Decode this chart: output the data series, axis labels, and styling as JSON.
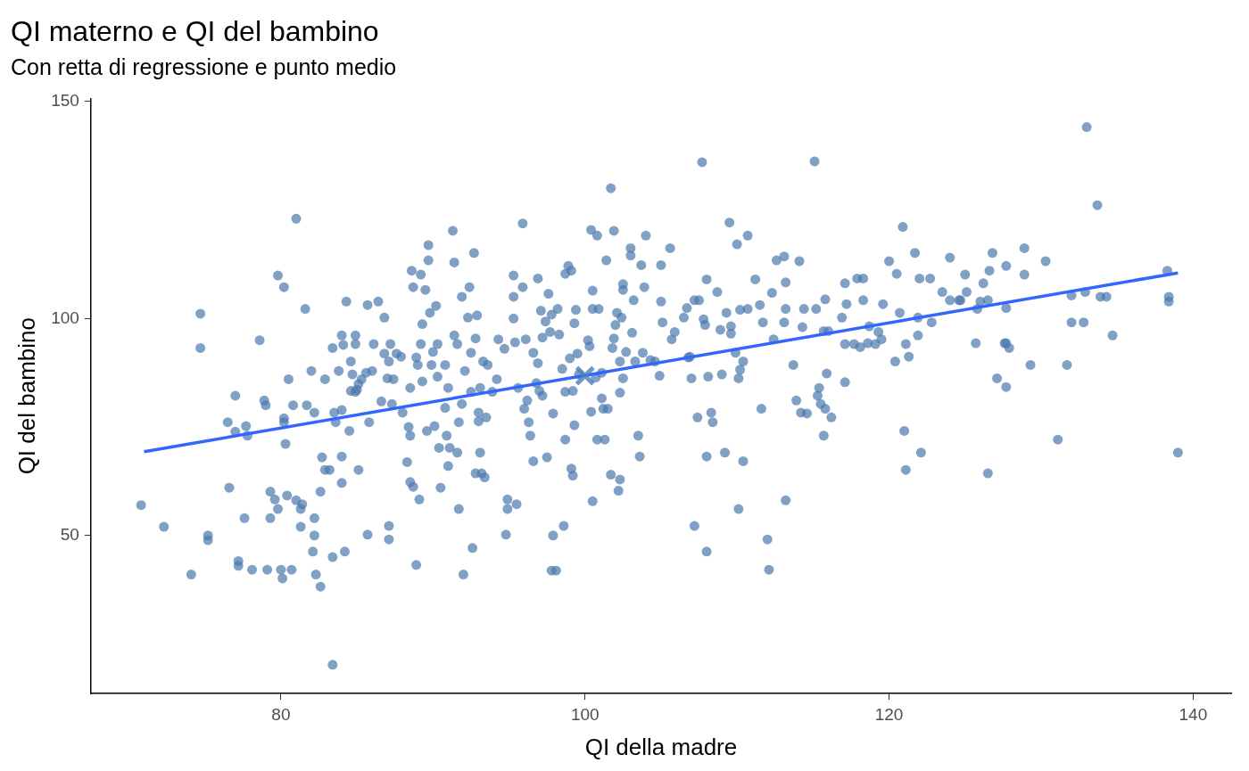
{
  "chart_data": {
    "type": "scatter",
    "title": "QI materno e QI del bambino",
    "subtitle": "Con retta di regressione e punto medio",
    "xlabel": "QI della madre",
    "ylabel": "QI del bambino",
    "xlim": [
      67.5,
      142.5
    ],
    "xticks": [
      80,
      100,
      120,
      140
    ],
    "ylim": [
      13.6,
      150.7
    ],
    "yticks": [
      50,
      100,
      150
    ],
    "grid": false,
    "legend": false,
    "series": [
      {
        "color": "#4a77ad",
        "marker": "circle",
        "x": [
          70.8,
          72.3,
          74.1,
          74.7,
          74.7,
          75.2,
          75.2,
          76.5,
          76.6,
          77.0,
          77.0,
          77.2,
          77.2,
          77.6,
          77.7,
          77.8,
          78.1,
          78.6,
          78.9,
          79.0,
          79.1,
          79.3,
          79.3,
          79.6,
          79.8,
          79.8,
          80.0,
          80.1,
          80.2,
          80.2,
          80.2,
          80.3,
          80.4,
          80.5,
          80.7,
          80.8,
          81.0,
          81.0,
          81.3,
          81.3,
          81.6,
          81.7,
          81.4,
          82.0,
          82.1,
          82.2,
          82.2,
          82.2,
          82.3,
          82.6,
          82.6,
          82.7,
          82.9,
          82.9,
          83.2,
          83.4,
          83.4,
          83.4,
          83.5,
          83.6,
          83.8,
          84.0,
          84.0,
          84.0,
          84.0,
          84.1,
          84.2,
          84.3,
          84.5,
          84.6,
          84.6,
          84.7,
          84.9,
          84.9,
          84.9,
          85.0,
          85.1,
          85.1,
          85.3,
          85.6,
          85.7,
          85.7,
          85.8,
          86.0,
          86.1,
          86.4,
          86.6,
          86.8,
          86.8,
          87.0,
          87.1,
          87.1,
          87.1,
          87.2,
          87.3,
          87.4,
          87.6,
          87.9,
          88.0,
          88.3,
          88.4,
          88.5,
          88.5,
          88.5,
          88.6,
          88.7,
          88.7,
          88.9,
          88.9,
          89.0,
          89.1,
          89.2,
          89.2,
          89.3,
          89.3,
          89.5,
          89.6,
          89.7,
          89.7,
          89.8,
          89.9,
          90.0,
          90.1,
          90.2,
          90.3,
          90.3,
          90.4,
          90.5,
          90.8,
          90.8,
          90.9,
          91.0,
          91.0,
          91.1,
          91.3,
          91.4,
          91.4,
          91.6,
          91.6,
          91.7,
          91.7,
          91.9,
          91.9,
          92.0,
          92.1,
          92.3,
          92.4,
          92.5,
          92.5,
          92.6,
          92.7,
          92.8,
          92.8,
          92.9,
          93.0,
          93.0,
          93.1,
          93.1,
          93.2,
          93.3,
          93.4,
          93.5,
          93.6,
          93.9,
          94.2,
          94.3,
          94.7,
          94.8,
          94.9,
          94.9,
          95.3,
          95.3,
          95.3,
          95.4,
          95.5,
          95.6,
          95.9,
          95.9,
          96.0,
          96.1,
          96.2,
          96.3,
          96.4,
          96.6,
          96.6,
          96.8,
          96.9,
          96.9,
          97.0,
          97.1,
          97.2,
          97.2,
          97.4,
          97.5,
          97.6,
          97.7,
          97.8,
          97.8,
          97.9,
          97.9,
          98.1,
          98.2,
          98.3,
          98.5,
          98.6,
          98.7,
          98.7,
          98.7,
          98.9,
          99.0,
          99.1,
          99.1,
          99.2,
          99.2,
          99.3,
          99.3,
          99.4,
          99.5,
          99.6,
          100.2,
          100.4,
          100.3,
          100.4,
          100.5,
          100.5,
          100.5,
          100.7,
          100.8,
          100.8,
          100.9,
          101.1,
          101.1,
          101.2,
          101.3,
          101.4,
          101.5,
          101.7,
          101.7,
          101.9,
          101.8,
          101.9,
          102.0,
          102.1,
          102.2,
          102.3,
          102.3,
          102.3,
          102.4,
          102.5,
          102.5,
          102.5,
          102.7,
          103.0,
          103.0,
          103.1,
          103.2,
          103.3,
          103.5,
          103.6,
          103.7,
          103.8,
          103.9,
          104.0,
          104.3,
          104.6,
          104.9,
          105.0,
          105.0,
          105.1,
          105.6,
          105.7,
          105.9,
          106.5,
          106.7,
          106.8,
          106.9,
          107.0,
          107.2,
          107.2,
          107.4,
          107.5,
          107.7,
          107.8,
          107.9,
          108.0,
          108.0,
          108.0,
          108.1,
          108.3,
          108.4,
          108.7,
          108.9,
          109.0,
          109.2,
          109.3,
          109.5,
          109.6,
          109.6,
          109.9,
          110.0,
          110.1,
          110.1,
          110.2,
          110.2,
          110.4,
          110.4,
          110.7,
          110.7,
          111.2,
          111.5,
          111.6,
          111.7,
          112.0,
          112.1,
          112.3,
          112.4,
          112.6,
          113.1,
          113.1,
          113.2,
          113.2,
          113.2,
          113.7,
          113.9,
          114.1,
          114.2,
          114.3,
          114.4,
          114.6,
          115.1,
          115.2,
          115.3,
          115.4,
          115.5,
          115.7,
          115.7,
          115.8,
          115.8,
          115.9,
          116.0,
          116.2,
          116.9,
          117.1,
          117.1,
          117.1,
          117.2,
          117.7,
          117.9,
          118.1,
          118.3,
          118.3,
          118.6,
          118.7,
          119.1,
          119.3,
          119.5,
          119.6,
          120.0,
          120.4,
          120.5,
          120.7,
          120.9,
          121.0,
          121.1,
          121.1,
          121.3,
          121.7,
          121.9,
          121.9,
          122.0,
          122.1,
          122.7,
          122.8,
          123.5,
          124.0,
          124.0,
          124.6,
          124.7,
          125.0,
          125.1,
          125.7,
          125.8,
          126.0,
          126.2,
          126.5,
          126.5,
          126.6,
          126.8,
          127.1,
          127.6,
          127.7,
          127.7,
          127.7,
          127.7,
          127.9,
          128.9,
          128.9,
          129.3,
          130.3,
          131.1,
          131.7,
          132.0,
          132.0,
          132.8,
          132.9,
          133.0,
          133.7,
          133.9,
          134.3,
          134.7,
          138.3,
          138.4,
          138.4,
          139.0
        ],
        "values": [
          57.0,
          52.0,
          41.0,
          101.1,
          93.2,
          50.0,
          48.9,
          76.1,
          61.0,
          82.2,
          73.9,
          44.1,
          43.0,
          54.0,
          75.2,
          73.0,
          42.1,
          95.0,
          81.1,
          80.0,
          42.1,
          60.1,
          54.0,
          58.3,
          109.9,
          56.1,
          42.1,
          40.1,
          77.0,
          107.2,
          76.1,
          71.1,
          59.2,
          86.0,
          42.1,
          80.0,
          58.1,
          123.0,
          56.1,
          52.0,
          102.2,
          80.0,
          57.2,
          87.9,
          46.3,
          50.0,
          54.0,
          78.3,
          41.0,
          38.2,
          60.1,
          68.0,
          65.1,
          86.0,
          65.1,
          20.2,
          93.2,
          45.0,
          78.3,
          76.1,
          87.9,
          62.1,
          78.9,
          96.1,
          68.2,
          93.9,
          46.3,
          103.9,
          74.1,
          83.3,
          90.1,
          87.1,
          83.1,
          94.1,
          96.1,
          83.6,
          84.9,
          65.1,
          86.0,
          87.5,
          103.1,
          50.2,
          76.1,
          87.9,
          94.1,
          103.9,
          80.9,
          100.2,
          91.9,
          86.2,
          49.1,
          52.2,
          90.1,
          94.1,
          80.3,
          86.0,
          91.9,
          91.2,
          78.3,
          66.9,
          75.0,
          73.0,
          62.3,
          84.0,
          111.0,
          61.2,
          107.2,
          91.0,
          43.2,
          89.3,
          58.3,
          94.1,
          110.1,
          98.7,
          85.5,
          106.6,
          74.1,
          116.9,
          113.4,
          101.3,
          89.3,
          92.3,
          75.2,
          102.9,
          94.1,
          86.6,
          70.2,
          61.0,
          79.4,
          89.3,
          73.0,
          84.0,
          66.0,
          70.2,
          120.2,
          112.9,
          96.1,
          94.1,
          69.1,
          76.1,
          56.1,
          80.3,
          105.0,
          41.0,
          87.9,
          100.2,
          107.2,
          92.1,
          83.1,
          47.1,
          115.1,
          64.3,
          95.4,
          100.7,
          76.3,
          78.3,
          84.0,
          69.1,
          64.3,
          90.1,
          63.4,
          77.2,
          89.3,
          83.1,
          86.0,
          95.2,
          93.0,
          50.2,
          58.3,
          56.1,
          100.0,
          109.9,
          105.0,
          94.5,
          57.2,
          84.0,
          107.2,
          121.9,
          79.2,
          95.2,
          81.1,
          76.1,
          73.0,
          92.1,
          67.1,
          85.1,
          109.2,
          89.7,
          83.3,
          101.8,
          82.2,
          95.6,
          99.3,
          68.0,
          105.7,
          96.9,
          100.9,
          41.9,
          50.0,
          78.1,
          41.9,
          102.2,
          96.3,
          88.4,
          52.2,
          72.1,
          83.1,
          110.3,
          112.1,
          90.8,
          111.0,
          65.4,
          63.8,
          83.3,
          75.4,
          98.9,
          102.0,
          91.9,
          87.1,
          95.0,
          78.5,
          93.6,
          120.4,
          106.4,
          57.9,
          102.2,
          86.4,
          119.1,
          72.1,
          102.2,
          81.6,
          87.5,
          79.2,
          72.1,
          113.4,
          79.2,
          130.0,
          64.0,
          120.2,
          93.2,
          95.4,
          98.5,
          101.3,
          60.3,
          62.9,
          82.9,
          90.1,
          100.2,
          107.9,
          106.6,
          86.2,
          92.3,
          116.2,
          114.5,
          96.7,
          104.2,
          90.1,
          73.0,
          68.2,
          112.3,
          92.1,
          107.2,
          119.1,
          90.4,
          90.1,
          86.8,
          112.3,
          103.9,
          99.1,
          116.2,
          95.2,
          96.9,
          100.2,
          102.4,
          91.0,
          91.2,
          86.2,
          104.2,
          52.2,
          77.2,
          104.2,
          136.0,
          99.8,
          98.5,
          46.3,
          68.2,
          109.0,
          86.6,
          78.3,
          76.1,
          106.1,
          97.4,
          87.1,
          69.1,
          101.3,
          122.1,
          96.5,
          98.2,
          92.1,
          117.1,
          86.2,
          56.1,
          102.0,
          88.2,
          67.1,
          90.1,
          102.2,
          119.1,
          109.0,
          103.1,
          79.2,
          99.1,
          49.1,
          42.1,
          105.9,
          95.2,
          113.4,
          99.1,
          114.3,
          58.1,
          108.3,
          102.2,
          89.3,
          81.1,
          113.2,
          78.3,
          98.0,
          102.2,
          78.1,
          136.2,
          102.2,
          82.2,
          84.0,
          80.3,
          97.1,
          73.0,
          79.2,
          104.4,
          87.3,
          97.1,
          77.2,
          100.2,
          108.1,
          94.1,
          85.3,
          103.3,
          94.1,
          109.2,
          93.4,
          109.2,
          104.2,
          94.3,
          98.2,
          94.1,
          96.9,
          95.2,
          103.3,
          113.2,
          90.1,
          110.3,
          101.3,
          121.1,
          74.1,
          94.1,
          65.1,
          91.2,
          115.1,
          96.1,
          100.2,
          109.2,
          69.1,
          109.2,
          99.1,
          106.1,
          114.0,
          104.2,
          104.2,
          104.2,
          110.1,
          106.1,
          94.3,
          102.2,
          103.9,
          108.1,
          104.2,
          64.3,
          111.0,
          115.1,
          86.2,
          94.3,
          84.2,
          112.1,
          102.4,
          94.3,
          93.2,
          110.1,
          116.2,
          89.3,
          113.2,
          72.1,
          89.3,
          105.3,
          99.1,
          99.1,
          106.1,
          144.1,
          126.1,
          105.0,
          105.0,
          96.1,
          111.0,
          105.0,
          103.9,
          69.1
        ]
      },
      {
        "type": "line",
        "color": "#3366ff",
        "marker": "none",
        "line_style": "solid",
        "x": [
          71.0,
          139.0
        ],
        "values": [
          69.3,
          110.5
        ]
      },
      {
        "type": "scatter",
        "color": "#4a80b8",
        "marker": "cross",
        "x": [
          100
        ],
        "values": [
          86.8
        ]
      }
    ]
  }
}
